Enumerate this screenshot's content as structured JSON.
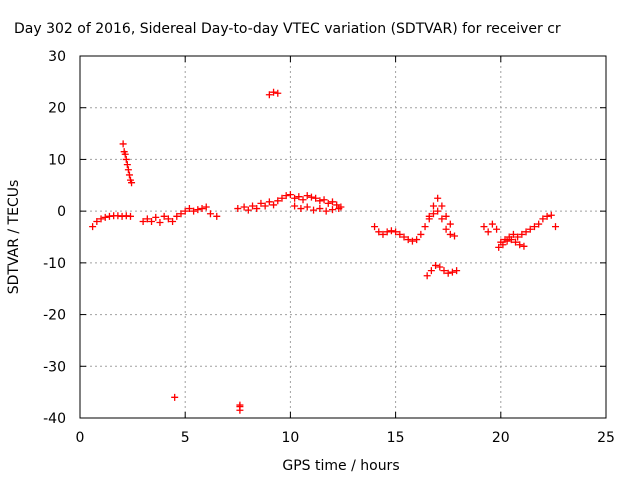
{
  "chart_data": {
    "type": "scatter",
    "title": "Day 302 of 2016, Sidereal Day-to-day VTEC variation (SDTVAR) for receiver cr",
    "xlabel": "GPS time / hours",
    "ylabel": "SDTVAR / TECUs",
    "xlim": [
      0,
      25
    ],
    "ylim": [
      -40,
      30
    ],
    "xticks": [
      "0",
      "5",
      "10",
      "15",
      "20",
      "25"
    ],
    "yticks": [
      "-40",
      "-30",
      "-20",
      "-10",
      "0",
      "10",
      "20",
      "30"
    ],
    "grid": true,
    "marker": "+",
    "color": "#ff0000",
    "series": [
      {
        "x": [
          0.6,
          0.8,
          1.0,
          1.2,
          1.4,
          1.6,
          1.8,
          2.0,
          2.2,
          2.4,
          2.05,
          2.1,
          2.15,
          2.2,
          2.25,
          2.3,
          2.35,
          2.4,
          2.45,
          3.0,
          3.2,
          3.4,
          3.6,
          3.8,
          4.0,
          4.2,
          4.4,
          4.6,
          4.8,
          5.0,
          5.2,
          5.4,
          5.6,
          5.8,
          6.0,
          6.2,
          6.5,
          9.0,
          9.2,
          9.4,
          4.5,
          7.6,
          7.6,
          7.6,
          7.5,
          7.8,
          8.0,
          8.2,
          8.4,
          8.6,
          8.8,
          9.0,
          9.2,
          9.4,
          9.6,
          9.8,
          10.0,
          10.2,
          10.4,
          10.6,
          10.8,
          11.0,
          11.2,
          11.4,
          11.6,
          11.8,
          12.0,
          12.2,
          12.4,
          10.2,
          10.5,
          10.8,
          11.1,
          11.4,
          11.7,
          12.0,
          12.3,
          14.0,
          14.2,
          14.4,
          14.6,
          14.8,
          15.0,
          15.2,
          15.4,
          15.6,
          15.8,
          16.0,
          16.2,
          16.4,
          16.6,
          16.8,
          17.0,
          17.2,
          17.4,
          17.6,
          17.8,
          16.6,
          16.8,
          17.0,
          17.2,
          17.4,
          17.6,
          16.5,
          16.7,
          16.9,
          17.1,
          17.3,
          17.5,
          17.7,
          17.9,
          19.2,
          19.4,
          19.6,
          19.8,
          20.0,
          20.2,
          20.4,
          20.6,
          20.8,
          21.0,
          21.2,
          21.4,
          21.6,
          21.8,
          22.0,
          22.2,
          22.4,
          22.6,
          19.9,
          20.1,
          20.3,
          20.5,
          20.7,
          20.9,
          21.1
        ],
        "y": [
          -3.0,
          -2.0,
          -1.5,
          -1.2,
          -1.0,
          -0.9,
          -0.9,
          -1.0,
          -0.9,
          -1.0,
          13.0,
          11.5,
          11.0,
          10.0,
          9.0,
          8.0,
          7.0,
          6.0,
          5.5,
          -2.0,
          -1.5,
          -2.0,
          -1.2,
          -2.2,
          -1.0,
          -1.5,
          -2.0,
          -1.0,
          -0.5,
          0.0,
          0.5,
          0.0,
          0.3,
          0.5,
          0.8,
          -0.5,
          -1.0,
          22.5,
          23.0,
          22.8,
          -36.0,
          -37.5,
          -38.5,
          -37.8,
          0.5,
          0.8,
          0.2,
          1.0,
          0.5,
          1.5,
          1.0,
          1.8,
          1.2,
          2.0,
          2.5,
          3.0,
          3.2,
          2.5,
          2.8,
          2.2,
          3.0,
          2.7,
          2.5,
          2.0,
          2.2,
          1.5,
          1.8,
          1.2,
          0.8,
          1.0,
          0.5,
          0.8,
          0.2,
          0.5,
          0.0,
          0.3,
          0.5,
          -3.0,
          -4.0,
          -4.5,
          -4.0,
          -3.8,
          -4.0,
          -4.5,
          -5.0,
          -5.5,
          -5.8,
          -5.5,
          -4.5,
          -3.0,
          -1.5,
          -0.5,
          0.0,
          -1.5,
          -3.5,
          -4.5,
          -4.8,
          -1.0,
          1.0,
          2.5,
          1.0,
          -1.0,
          -2.5,
          -12.5,
          -11.5,
          -10.5,
          -10.8,
          -11.5,
          -12.0,
          -11.8,
          -11.5,
          -3.0,
          -4.0,
          -2.5,
          -3.5,
          -6.0,
          -5.5,
          -5.0,
          -4.5,
          -5.0,
          -4.5,
          -4.0,
          -3.5,
          -3.0,
          -2.5,
          -1.5,
          -1.0,
          -0.8,
          -3.0,
          -7.0,
          -6.5,
          -5.8,
          -5.5,
          -6.0,
          -6.5,
          -6.8
        ]
      }
    ]
  }
}
